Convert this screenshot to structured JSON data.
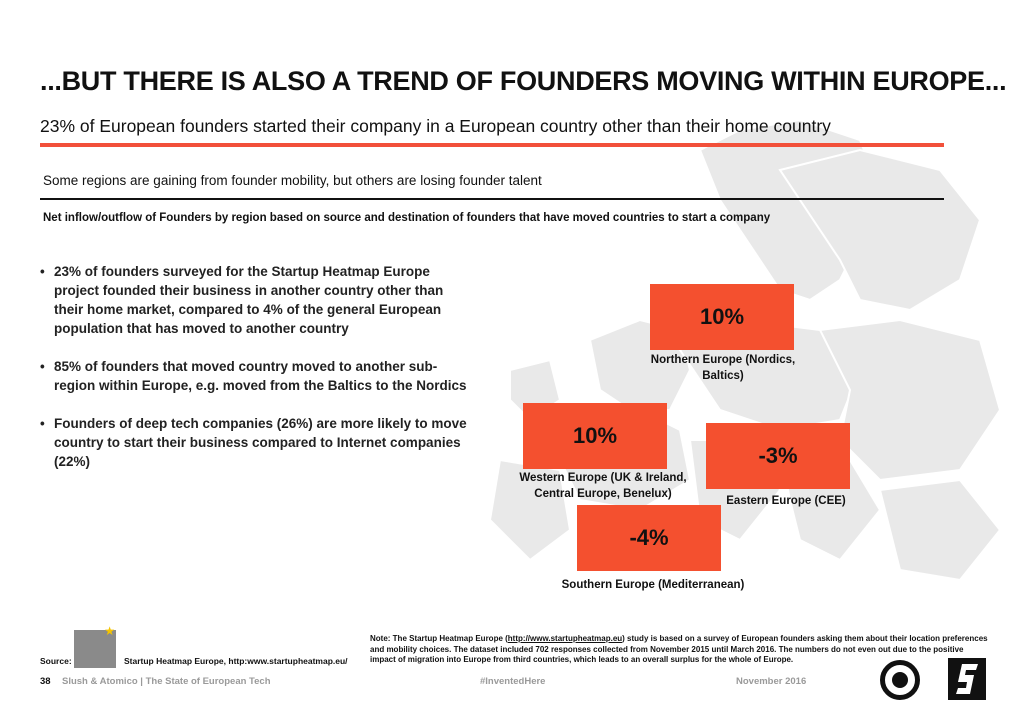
{
  "header": {
    "title": "...BUT THERE IS ALSO A TREND OF FOUNDERS MOVING WITHIN EUROPE...",
    "subtitle": "23% of European founders started their company in a European country other than their home country",
    "tagline": "Some regions are gaining from founder mobility, but others are losing founder talent",
    "chart_caption": "Net inflow/outflow of Founders by region based on source and destination of founders that have moved countries to start a company"
  },
  "bullets": [
    "23% of founders surveyed for the Startup Heatmap Europe project founded their business in another country other than their home market, compared to 4% of the general European population that has moved to another country",
    "85% of founders that moved country moved to another sub-region within Europe, e.g. moved from the Baltics to the Nordics",
    "Founders of deep tech companies (26%) are more likely to move country to start their business compared to Internet companies (22%)"
  ],
  "regions": [
    {
      "value": "10%",
      "label": "Northern Europe (Nordics, Baltics)"
    },
    {
      "value": "10%",
      "label": "Western Europe (UK & Ireland, Central Europe, Benelux)"
    },
    {
      "value": "-3%",
      "label": "Eastern Europe (CEE)"
    },
    {
      "value": "-4%",
      "label": "Southern Europe (Mediterranean)"
    }
  ],
  "source": {
    "label": "Source:",
    "text": "Startup Heatmap Europe, http:www.startupheatmap.eu/"
  },
  "note": {
    "prefix": "Note: The Startup Heatmap Europe (",
    "link": "http://www.startupheatmap.eu",
    "suffix": ") study is based on a survey of European founders asking them about their location preferences and mobility choices. The dataset included 702 responses collected from November 2015 until March 2016. The numbers do not even out due to the positive impact of migration into Europe from third countries, which leads to an overall surplus for the whole of Europe."
  },
  "footer": {
    "page_number": "38",
    "left": "Slush & Atomico  |  The State of European Tech",
    "middle": "#InventedHere",
    "right": "November 2016"
  },
  "colors": {
    "accent_red": "#f4502f",
    "map_gray": "#e9e9e9"
  },
  "icons": {
    "slush_logo": "slush-logo-icon",
    "atomico_logo": "atomico-logo-icon",
    "heatmap_logo": "startup-heatmap-logo-icon"
  }
}
